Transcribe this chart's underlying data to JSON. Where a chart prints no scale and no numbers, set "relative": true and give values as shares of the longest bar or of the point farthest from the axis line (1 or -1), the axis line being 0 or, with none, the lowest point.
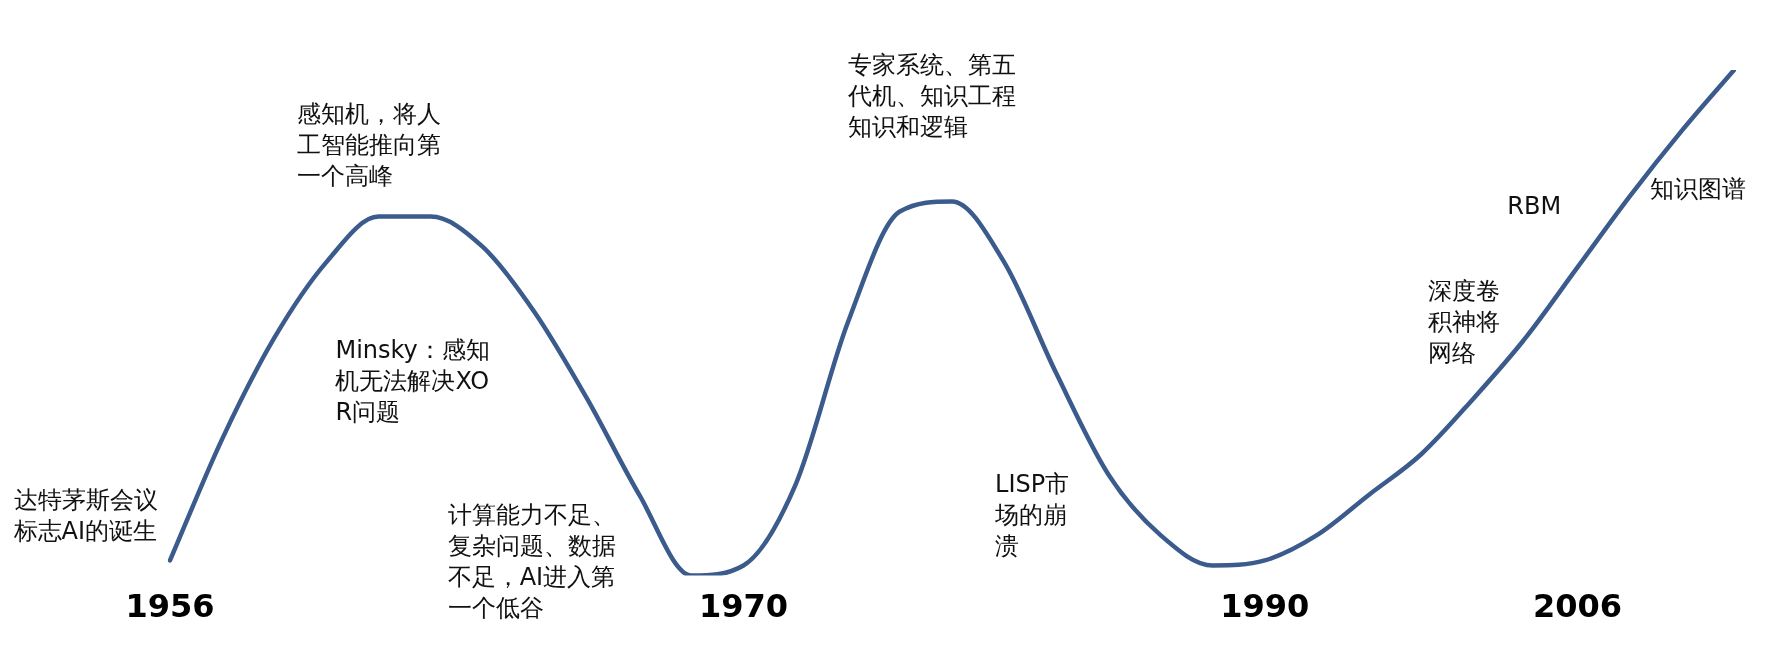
{
  "chart_data": {
    "type": "line",
    "relative": true,
    "tick_labels": "x",
    "grid": false,
    "legend": false,
    "marker": "none",
    "line_style": "solid",
    "categories": [
      "1956",
      null,
      null,
      null,
      null,
      null,
      null,
      null,
      null,
      null,
      null,
      "1970",
      null,
      null,
      null,
      null,
      null,
      null,
      null,
      null,
      null,
      "1990",
      null,
      null,
      null,
      null,
      null,
      "2006",
      null,
      null,
      null
    ],
    "series": [
      {
        "color": "#3b5b8c",
        "values": [
          0.03,
          0.27,
          0.47,
          0.62,
          0.71,
          0.71,
          0.65,
          0.52,
          0.35,
          0.16,
          0,
          0.02,
          0.18,
          0.5,
          0.72,
          0.74,
          0.62,
          0.4,
          0.2,
          0.08,
          0.02,
          0.03,
          0.08,
          0.16,
          0.24,
          0.35,
          0.47,
          0.61,
          0.75,
          0.88,
          1
        ]
      }
    ],
    "annotations": [
      "达特茅斯会议标志AI的诞生",
      "感知机，将人工智能推向第一个高峰",
      "Minsky：感知机无法解决XOR问题",
      "计算能力不足、复杂问题、数据不足，AI进入第一个低谷",
      "专家系统、第五代机、知识工程知识和逻辑",
      "LISP市场的崩溃",
      "RBM",
      "深度卷积神将网络",
      "知识图谱"
    ]
  }
}
